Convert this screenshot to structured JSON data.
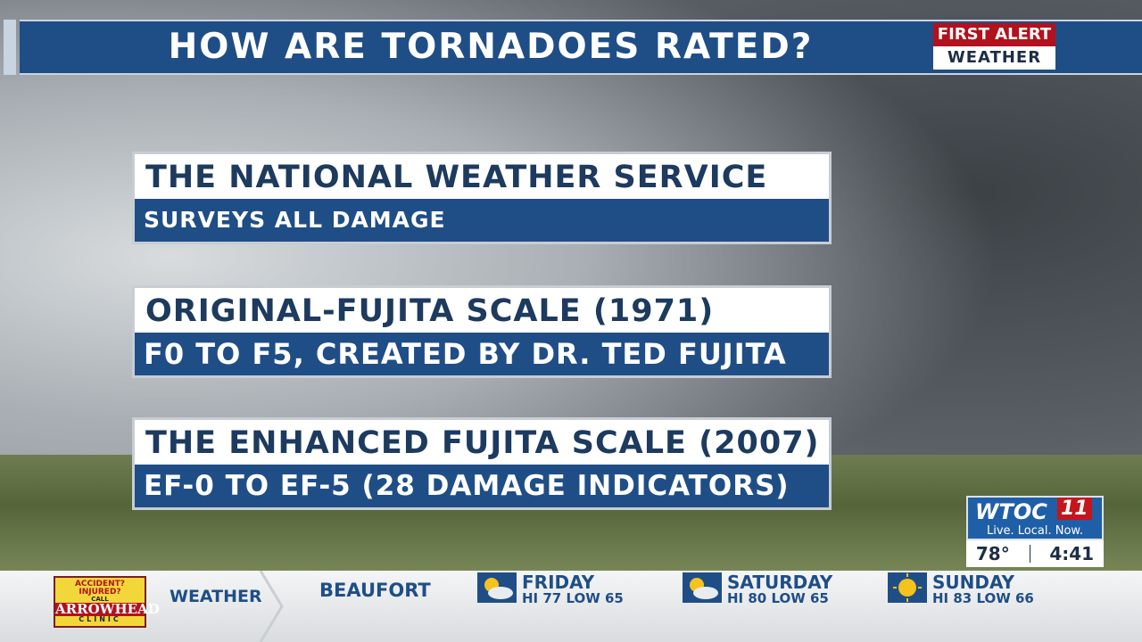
{
  "header": {
    "title": "HOW ARE TORNADOES RATED?",
    "badge": {
      "line1": "FIRST ALERT",
      "line2": "WEATHER"
    }
  },
  "cards": [
    {
      "title": "THE NATIONAL WEATHER SERVICE",
      "subtitle": "SURVEYS ALL DAMAGE"
    },
    {
      "title": "ORIGINAL-FUJITA SCALE (1971)",
      "subtitle": "F0 TO F5, CREATED BY DR. TED FUJITA"
    },
    {
      "title": "THE ENHANCED FUJITA SCALE (2007)",
      "subtitle": "EF-0 TO EF-5 (28 DAMAGE INDICATORS)"
    }
  ],
  "station": {
    "logo": "WTOC",
    "channel": "11",
    "slogan": "Live. Local. Now.",
    "temperature": "78°",
    "time": "4:41"
  },
  "ticker": {
    "sponsor": {
      "line1": "ACCIDENT? INJURED?",
      "line2": "CALL",
      "line3": "ARROWHEAD",
      "line4": "CLINIC"
    },
    "label": "WEATHER",
    "location": "BEAUFORT",
    "forecast": [
      {
        "day": "FRIDAY",
        "detail": "HI 77 LOW 65"
      },
      {
        "day": "SATURDAY",
        "detail": "HI 80 LOW 65"
      },
      {
        "day": "SUNDAY",
        "detail": "HI 83 LOW 66"
      }
    ]
  }
}
